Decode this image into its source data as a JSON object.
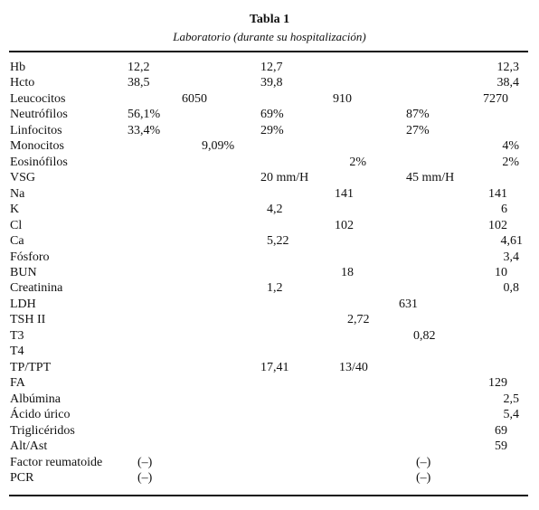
{
  "header": {
    "title": "Tabla 1",
    "subtitle": "Laboratorio (durante su hospitalización)"
  },
  "table": {
    "rows": [
      {
        "label": "Hb",
        "values": [
          "12,2",
          "12,7",
          "12,3"
        ]
      },
      {
        "label": "Hcto",
        "values": [
          "38,5",
          "39,8",
          "38,4"
        ]
      },
      {
        "label": "Leucocitos",
        "values": [
          "6050",
          "910",
          "7270"
        ]
      },
      {
        "label": "Neutrófilos",
        "values": [
          "56,1%",
          "69%",
          "87%"
        ]
      },
      {
        "label": "Linfocitos",
        "values": [
          "33,4%",
          "29%",
          "27%"
        ]
      },
      {
        "label": "Monocitos",
        "values": [
          "9,09%",
          "4%"
        ]
      },
      {
        "label": "Eosinófilos",
        "values": [
          "2%",
          "2%"
        ]
      },
      {
        "label": "VSG",
        "values": [
          "20 mm/H",
          "45 mm/H"
        ]
      },
      {
        "label": "Na",
        "values": [
          "141",
          "141"
        ]
      },
      {
        "label": "K",
        "values": [
          "4,2",
          "6"
        ]
      },
      {
        "label": "Cl",
        "values": [
          "102",
          "102"
        ]
      },
      {
        "label": "Ca",
        "values": [
          "5,22",
          "4,61"
        ]
      },
      {
        "label": "Fósforo",
        "values": [
          "3,4"
        ]
      },
      {
        "label": "BUN",
        "values": [
          "18",
          "10"
        ]
      },
      {
        "label": "Creatinina",
        "values": [
          "1,2",
          "0,8"
        ]
      },
      {
        "label": "LDH",
        "values": [
          "631"
        ]
      },
      {
        "label": "TSH II",
        "values": [
          "2,72"
        ]
      },
      {
        "label": "T3",
        "values": [
          "0,82"
        ]
      },
      {
        "label": "T4",
        "values": []
      },
      {
        "label": "TP/TPT",
        "values": [
          "17,41",
          "13/40"
        ]
      },
      {
        "label": "FA",
        "values": [
          "129"
        ]
      },
      {
        "label": "Albúmina",
        "values": [
          "2,5"
        ]
      },
      {
        "label": "Ácido úrico",
        "values": [
          "5,4"
        ]
      },
      {
        "label": "Triglicéridos",
        "values": [
          "69"
        ]
      },
      {
        "label": "Alt/Ast",
        "values": [
          "59"
        ]
      },
      {
        "label": "Factor reumatoide",
        "values": [
          "(–)",
          "(–)"
        ]
      },
      {
        "label": "PCR",
        "values": [
          "(–)",
          "(–)"
        ]
      }
    ]
  }
}
